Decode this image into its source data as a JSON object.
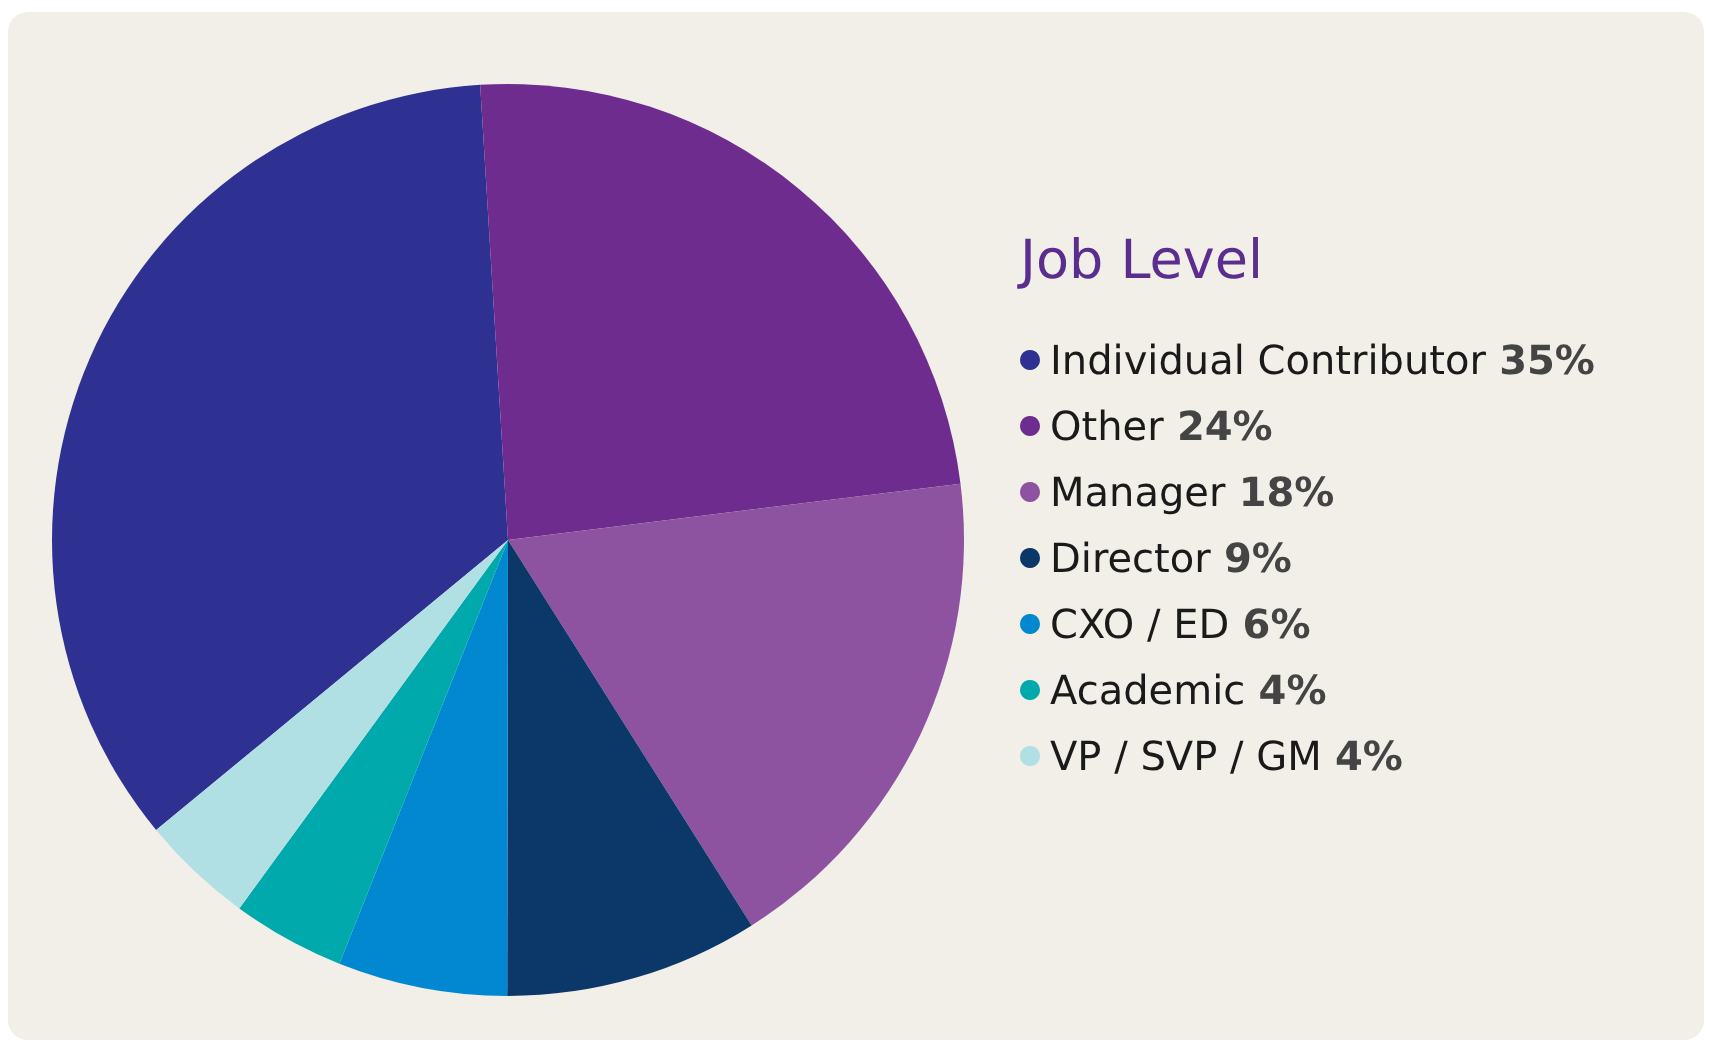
{
  "chart_data": {
    "type": "pie",
    "title": "Job Level",
    "categories": [
      "Individual Contributor",
      "Other",
      "Manager",
      "Director",
      "CXO / ED",
      "Academic",
      "VP / SVP / GM"
    ],
    "values": [
      35,
      24,
      18,
      9,
      6,
      4,
      4
    ],
    "value_labels": [
      "35%",
      "24%",
      "18%",
      "9%",
      "6%",
      "4%",
      "4%"
    ],
    "colors": [
      "#2e3192",
      "#6e2c8e",
      "#8d53a1",
      "#0b3769",
      "#0288d1",
      "#00a9ac",
      "#b0dfe4"
    ],
    "legend": "right"
  }
}
